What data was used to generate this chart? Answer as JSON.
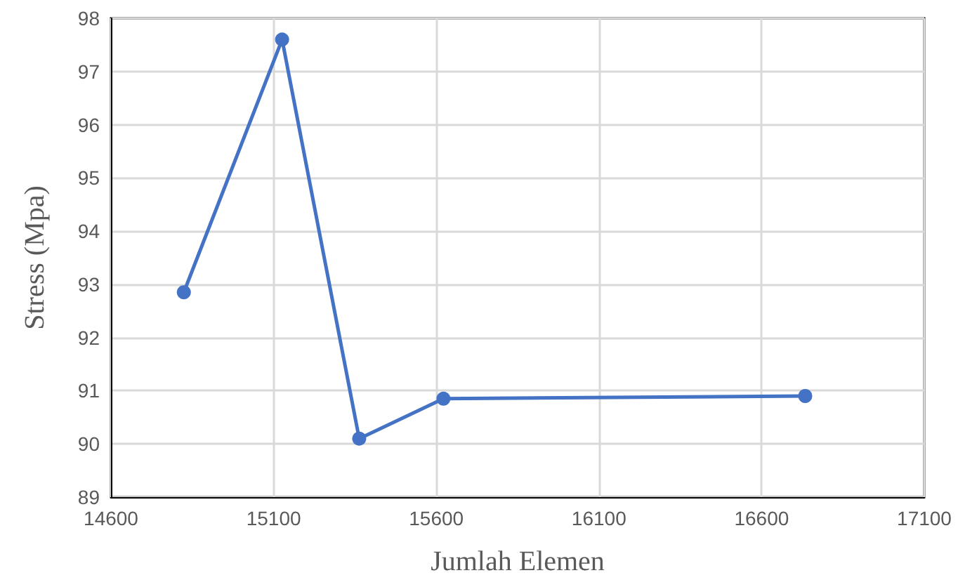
{
  "chart_data": {
    "type": "line",
    "xlabel": "Jumlah Elemen",
    "ylabel": "Stress (Mpa)",
    "x": [
      14824,
      15126,
      15363,
      15622,
      16734
    ],
    "series": [
      {
        "color": "#4472c4",
        "values": [
          92.85,
          97.6,
          90.1,
          90.85,
          90.9
        ]
      }
    ],
    "xlim": [
      14600,
      17100
    ],
    "xticks": [
      14600,
      15100,
      15600,
      16100,
      16600,
      17100
    ],
    "ylim": [
      89,
      98
    ],
    "yticks": [
      89,
      90,
      91,
      92,
      93,
      94,
      95,
      96,
      97,
      98
    ],
    "grid": true,
    "marker": "circle",
    "line_style": "solid"
  }
}
